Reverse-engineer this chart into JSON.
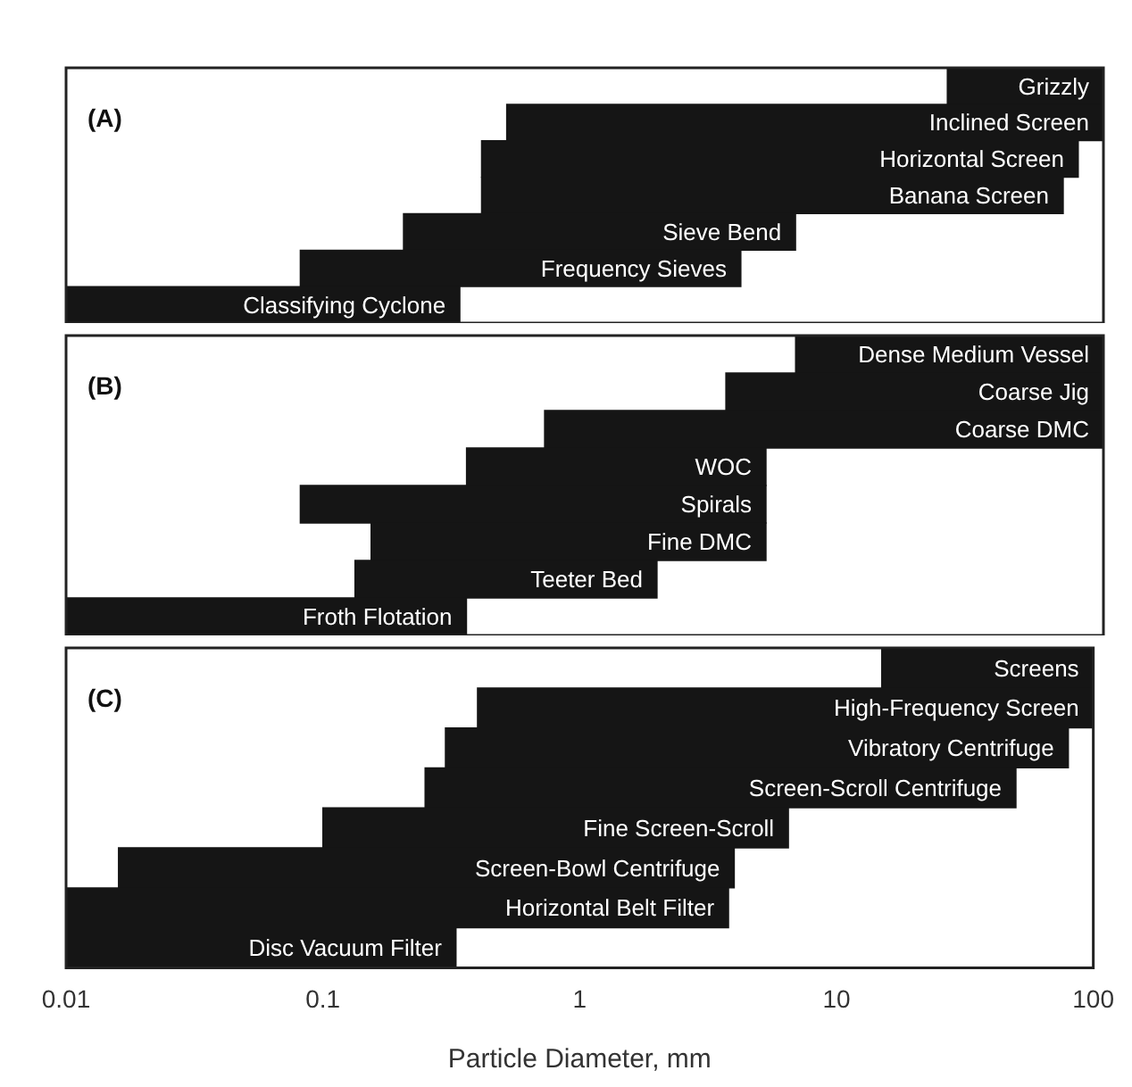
{
  "chart_data": [
    {
      "type": "bar",
      "orientation": "horizontal",
      "title": "(A)",
      "log": "x",
      "tick_labels": false,
      "xlim": [
        0.01,
        100
      ],
      "xticks": [
        0.01,
        0.1,
        1,
        10,
        100
      ],
      "color": "#151515",
      "categories": [
        "Grizzly",
        "Inclined Screen",
        "Horizontal Screen",
        "Banana Screen",
        "Sieve Bend",
        "Frequency Sieves",
        "Classifying Cyclone"
      ],
      "base": [
        25,
        0.5,
        0.4,
        0.4,
        0.2,
        0.08,
        0.01
      ],
      "values": [
        75,
        99.5,
        79.6,
        69.6,
        6.3,
        3.92,
        0.32
      ]
    },
    {
      "type": "bar",
      "orientation": "horizontal",
      "title": "(B)",
      "log": "x",
      "tick_labels": false,
      "xlim": [
        0.01,
        100
      ],
      "xticks": [
        0.01,
        0.1,
        1,
        10,
        100
      ],
      "color": "#151515",
      "categories": [
        "Dense Medium Vessel",
        "Coarse Jig",
        "Coarse DMC",
        "WOC",
        "Spirals",
        "Fine DMC",
        "Teeter Bed",
        "Froth Flotation"
      ],
      "base": [
        6.5,
        3.5,
        0.7,
        0.35,
        0.08,
        0.15,
        0.13,
        0.01
      ],
      "values": [
        93.5,
        96.5,
        99.3,
        4.65,
        4.92,
        4.85,
        1.77,
        0.34
      ]
    },
    {
      "type": "bar",
      "orientation": "horizontal",
      "title": "(C)",
      "log": "x",
      "tick_labels": "x",
      "xlabel": "Particle Diameter, mm",
      "xlim": [
        0.01,
        100
      ],
      "xticks": [
        0.01,
        0.1,
        1,
        10,
        100
      ],
      "color": "#151515",
      "categories": [
        "Screens",
        "High-Frequency Screen",
        "Vibratory Centrifuge",
        "Screen-Scroll Centrifuge",
        "Fine Screen-Scroll",
        "Screen-Bowl Centrifuge",
        "Horizontal Belt Filter",
        "Disc Vacuum Filter"
      ],
      "base": [
        15,
        0.4,
        0.3,
        0.25,
        0.1,
        0.016,
        0.01,
        0.01
      ],
      "values": [
        85,
        99.6,
        79.7,
        49.75,
        6.4,
        3.984,
        3.79,
        0.32
      ]
    }
  ]
}
